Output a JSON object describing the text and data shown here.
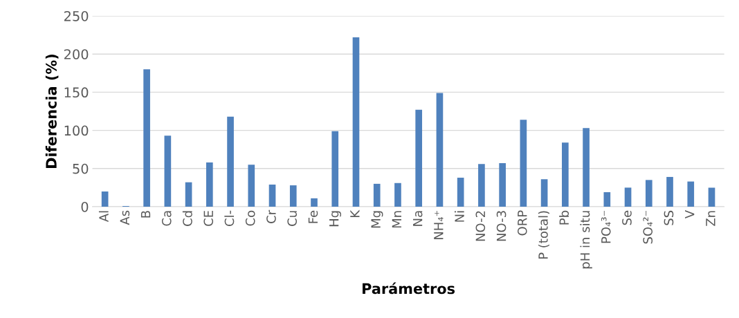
{
  "chart_data": {
    "type": "bar",
    "xlabel": "Parámetros",
    "ylabel": "Diferencia (%)",
    "categories": [
      "Al",
      "As",
      "B",
      "Ca",
      "Cd",
      "CE",
      "Cl-",
      "Co",
      "Cr",
      "Cu",
      "Fe",
      "Hg",
      "K",
      "Mg",
      "Mn",
      "Na",
      "NH₄⁺",
      "Ni",
      "NO-2",
      "NO-3",
      "ORP",
      "P (total)",
      "Pb",
      "pH in situ",
      "PO₄³⁻",
      "Se",
      "SO₄²⁻",
      "SS",
      "V",
      "Zn"
    ],
    "values": [
      20,
      1,
      180,
      93,
      32,
      58,
      118,
      55,
      29,
      28,
      11,
      99,
      222,
      30,
      31,
      127,
      149,
      38,
      56,
      57,
      114,
      36,
      84,
      103,
      19,
      25,
      35,
      39,
      33,
      25
    ],
    "color": "#4f81bd",
    "ylim": [
      0,
      250
    ],
    "yticks": [
      0,
      50,
      100,
      150,
      200,
      250
    ],
    "grid": "y",
    "legend": false
  }
}
